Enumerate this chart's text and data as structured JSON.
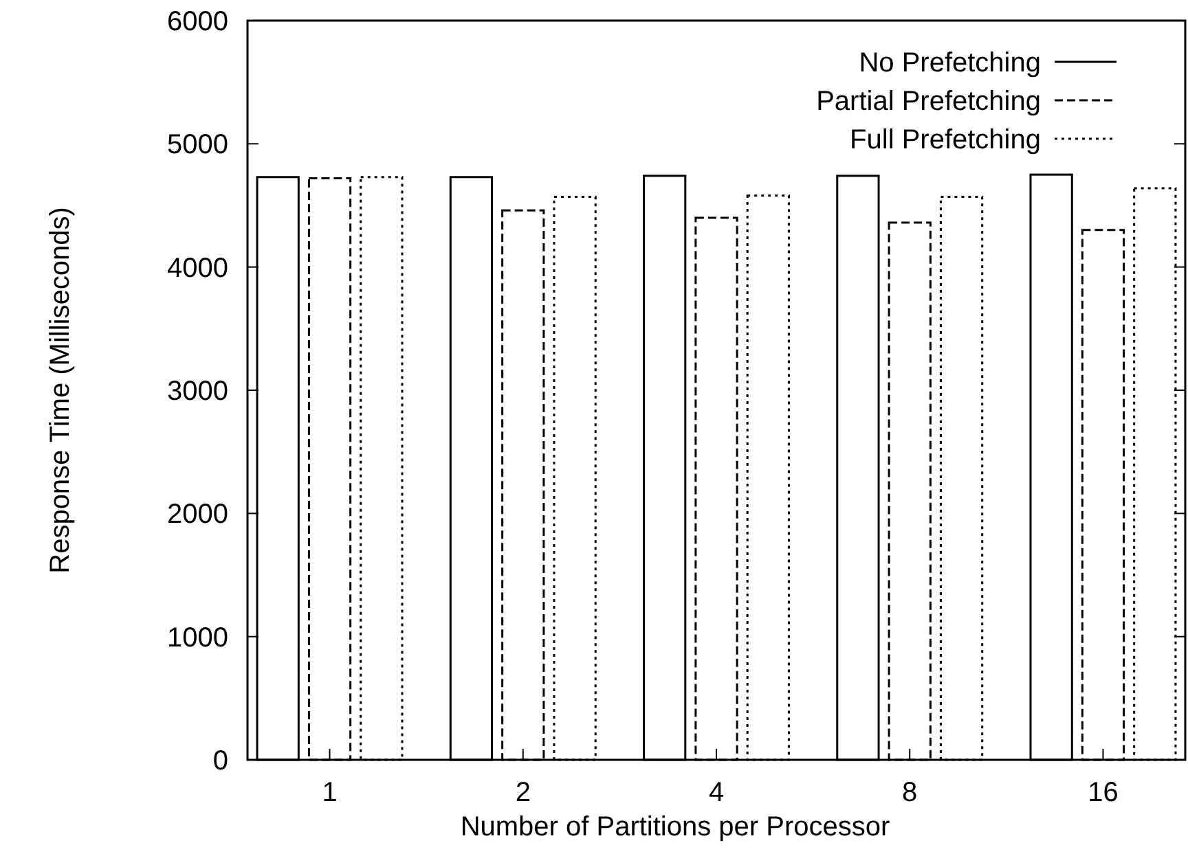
{
  "chart_data": {
    "type": "bar",
    "xlabel": "Number of Partitions per Processor",
    "ylabel": "Response Time (Milliseconds)",
    "categories": [
      "1",
      "2",
      "4",
      "8",
      "16"
    ],
    "series": [
      {
        "name": "No Prefetching",
        "color": "#000000",
        "line_style": "solid",
        "values": [
          4730,
          4730,
          4740,
          4740,
          4750
        ]
      },
      {
        "name": "Partial Prefetching",
        "color": "#000000",
        "line_style": "dashed",
        "values": [
          4720,
          4460,
          4400,
          4360,
          4300
        ]
      },
      {
        "name": "Full Prefetching",
        "color": "#000000",
        "line_style": "dotted",
        "values": [
          4730,
          4570,
          4580,
          4570,
          4640
        ]
      }
    ],
    "ylim": [
      0,
      6000
    ],
    "yticks": [
      0,
      1000,
      2000,
      3000,
      4000,
      5000,
      6000
    ],
    "grid": false,
    "legend": "top right"
  }
}
